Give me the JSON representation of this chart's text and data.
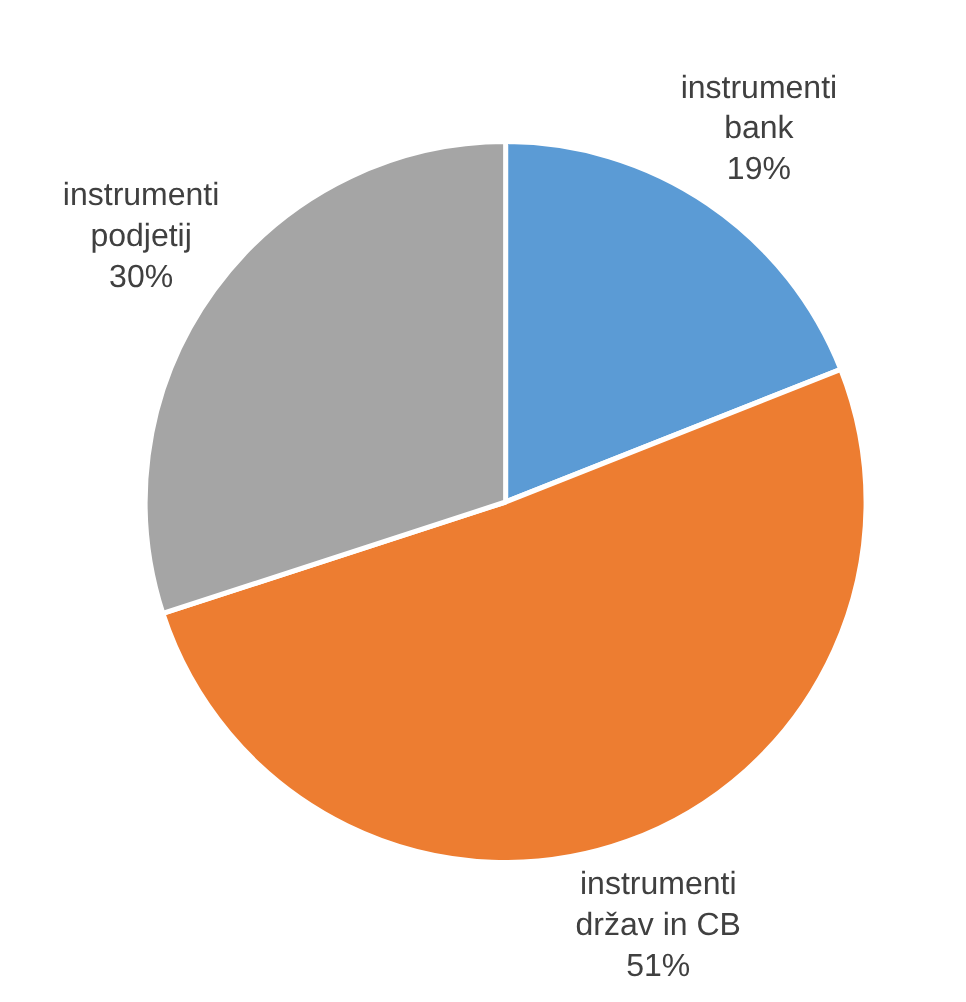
{
  "chart_data": {
    "type": "pie",
    "categories": [
      "instrumenti bank",
      "instrumenti držav in CB",
      "instrumenti podjetij"
    ],
    "values": [
      19,
      51,
      30
    ],
    "colors": [
      "#5b9bd5",
      "#ed7d31",
      "#a5a5a5"
    ],
    "value_labels": [
      "19%",
      "51%",
      "30%"
    ]
  }
}
